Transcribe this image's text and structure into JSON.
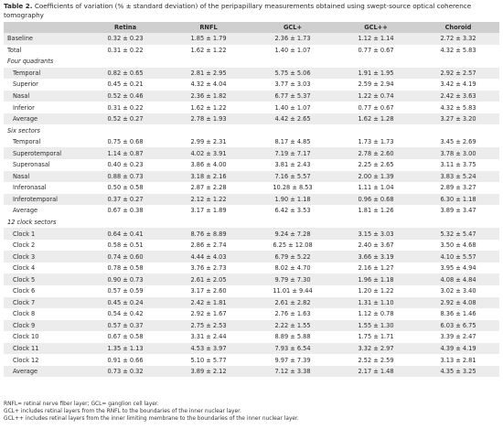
{
  "caption": {
    "label": "Table 2.",
    "text": "Coefficients of variation (% ± standard deviation) of the peripapillary measurements obtained using swept-source optical coherence tomography"
  },
  "columns": [
    "",
    "Retina",
    "RNFL",
    "GCL+",
    "GCL++",
    "Choroid"
  ],
  "rows": [
    {
      "type": "data",
      "shade": true,
      "indent": false,
      "cells": [
        "Baseline",
        "0.32 ± 0.23",
        "1.85 ± 1.79",
        "2.36 ± 1.73",
        "1.12 ± 1.14",
        "2.72 ± 3.32"
      ]
    },
    {
      "type": "data",
      "shade": false,
      "indent": false,
      "cells": [
        "Total",
        "0.31 ± 0.22",
        "1.62 ± 1.22",
        "1.40 ± 1.07",
        "0.77 ± 0.67",
        "4.32 ± 5.83"
      ]
    },
    {
      "type": "section",
      "label": "Four quadrants"
    },
    {
      "type": "data",
      "shade": true,
      "indent": true,
      "cells": [
        "Temporal",
        "0.82 ± 0.65",
        "2.81 ± 2.95",
        "5.75 ± 5.06",
        "1.91 ± 1.95",
        "2.92 ± 2.57"
      ]
    },
    {
      "type": "data",
      "shade": false,
      "indent": true,
      "cells": [
        "Superior",
        "0.45 ± 0.21",
        "4.32 ± 4.04",
        "3.77 ± 3.03",
        "2.59 ± 2.94",
        "3.42 ± 4.19"
      ]
    },
    {
      "type": "data",
      "shade": true,
      "indent": true,
      "cells": [
        "Nasal",
        "0.52 ± 0.46",
        "2.36 ± 1.82",
        "6.77 ± 5.37",
        "1.22 ± 0.74",
        "2.42 ± 3.63"
      ]
    },
    {
      "type": "data",
      "shade": false,
      "indent": true,
      "cells": [
        "Inferior",
        "0.31 ± 0.22",
        "1.62 ± 1.22",
        "1.40 ± 1.07",
        "0.77 ± 0.67",
        "4.32 ± 5.83"
      ]
    },
    {
      "type": "data",
      "shade": true,
      "indent": true,
      "cells": [
        "Average",
        "0.52 ± 0.27",
        "2.78 ± 1.93",
        "4.42 ± 2.65",
        "1.62 ± 1.28",
        "3.27 ± 3.20"
      ]
    },
    {
      "type": "section",
      "label": "Six sectors"
    },
    {
      "type": "data",
      "shade": false,
      "indent": true,
      "cells": [
        "Temporal",
        "0.75 ± 0.68",
        "2.99 ± 2.31",
        "8.17 ± 4.85",
        "1.73 ± 1.73",
        "3.45 ± 2.69"
      ]
    },
    {
      "type": "data",
      "shade": true,
      "indent": true,
      "cells": [
        "Superotemporal",
        "1.14 ± 0.87",
        "4.02 ± 3.91",
        "7.19 ± 7.17",
        "2.78 ± 2.60",
        "3.78 ± 3.00"
      ]
    },
    {
      "type": "data",
      "shade": false,
      "indent": true,
      "cells": [
        "Superonasal",
        "0.40 ± 0.23",
        "3.86 ± 4.00",
        "3.81 ± 2.43",
        "2.25 ± 2.65",
        "3.11 ± 3.75"
      ]
    },
    {
      "type": "data",
      "shade": true,
      "indent": true,
      "cells": [
        "Nasal",
        "0.88 ± 0.73",
        "3.18 ± 2.16",
        "7.16 ± 5.57",
        "2.00 ± 1.39",
        "3.83 ± 5.24"
      ]
    },
    {
      "type": "data",
      "shade": false,
      "indent": true,
      "cells": [
        "Inferonasal",
        "0.50 ± 0.58",
        "2.87 ± 2.28",
        "10.28 ± 8.53",
        "1.11 ± 1.04",
        "2.89 ± 3.27"
      ]
    },
    {
      "type": "data",
      "shade": true,
      "indent": true,
      "cells": [
        "Inferotemporal",
        "0.37 ± 0.27",
        "2.12 ± 1.22",
        "1.90 ± 1.18",
        "0.96 ± 0.68",
        "6.30 ± 1.18"
      ]
    },
    {
      "type": "data",
      "shade": false,
      "indent": true,
      "cells": [
        "Average",
        "0.67 ± 0.38",
        "3.17 ± 1.89",
        "6.42 ± 3.53",
        "1.81 ± 1.26",
        "3.89 ± 3.47"
      ]
    },
    {
      "type": "section",
      "label": "12 clock sectors"
    },
    {
      "type": "data",
      "shade": true,
      "indent": true,
      "cells": [
        "Clock 1",
        "0.64 ± 0.41",
        "8.76 ± 8.89",
        "9.24 ± 7.28",
        "3.15 ± 3.03",
        "5.32 ± 5.47"
      ]
    },
    {
      "type": "data",
      "shade": false,
      "indent": true,
      "cells": [
        "Clock 2",
        "0.58 ± 0.51",
        "2.86 ± 2.74",
        "6.25 ± 12.08",
        "2.40 ± 3.67",
        "3.50 ± 4.68"
      ]
    },
    {
      "type": "data",
      "shade": true,
      "indent": true,
      "cells": [
        "Clock 3",
        "0.74 ± 0.60",
        "4.44 ± 4.03",
        "6.79 ± 5.22",
        "3.66 ± 3.19",
        "4.10 ± 5.57"
      ]
    },
    {
      "type": "data",
      "shade": false,
      "indent": true,
      "cells": [
        "Clock 4",
        "0.78 ± 0.58",
        "3.76 ± 2.73",
        "8.02 ± 4.70",
        "2.16 ± 1.27",
        "3.95 ± 4.94"
      ]
    },
    {
      "type": "data",
      "shade": true,
      "indent": true,
      "cells": [
        "Clock 5",
        "0.90 ± 0.73",
        "2.61 ± 2.05",
        "9.79 ± 7.30",
        "1.96 ± 1.18",
        "4.08 ± 4.84"
      ]
    },
    {
      "type": "data",
      "shade": false,
      "indent": true,
      "cells": [
        "Clock 6",
        "0.57 ± 0.59",
        "3.17 ± 2.60",
        "11.01 ± 9.44",
        "1.20 ± 1.22",
        "3.02 ± 3.40"
      ]
    },
    {
      "type": "data",
      "shade": true,
      "indent": true,
      "cells": [
        "Clock 7",
        "0.45 ± 0.24",
        "2.42 ± 1.81",
        "2.61 ± 2.82",
        "1.31 ± 1.10",
        "2.92 ± 4.08"
      ]
    },
    {
      "type": "data",
      "shade": false,
      "indent": true,
      "cells": [
        "Clock 8",
        "0.54 ± 0.42",
        "2.92 ± 1.67",
        "2.76 ± 1.63",
        "1.12 ± 0.78",
        "8.36 ± 1.46"
      ]
    },
    {
      "type": "data",
      "shade": true,
      "indent": true,
      "cells": [
        "Clock 9",
        "0.57 ± 0.37",
        "2.75 ± 2.53",
        "2.22 ± 1.55",
        "1.55 ± 1.30",
        "6.03 ± 6.75"
      ]
    },
    {
      "type": "data",
      "shade": false,
      "indent": true,
      "cells": [
        "Clock 10",
        "0.67 ± 0.58",
        "3.31 ± 2.44",
        "8.89 ± 5.88",
        "1.75 ± 1.71",
        "3.39 ± 2.47"
      ]
    },
    {
      "type": "data",
      "shade": true,
      "indent": true,
      "cells": [
        "Clock 11",
        "1.35 ± 1.13",
        "4.53 ± 3.97",
        "7.93 ± 6.54",
        "3.32 ± 2.97",
        "4.39 ± 4.19"
      ]
    },
    {
      "type": "data",
      "shade": false,
      "indent": true,
      "cells": [
        "Clock 12",
        "0.91 ± 0.66",
        "5.10 ± 5.77",
        "9.97 ± 7.39",
        "2.52 ± 2.59",
        "3.13 ± 2.81"
      ]
    },
    {
      "type": "data",
      "shade": true,
      "indent": true,
      "cells": [
        "Average",
        "0.73 ± 0.32",
        "3.89 ± 2.12",
        "7.12 ± 3.38",
        "2.17 ± 1.48",
        "4.35 ± 3.25"
      ]
    }
  ],
  "footnotes": [
    "RNFL= retinal nerve fiber layer; GCL= ganglion cell layer.",
    "GCL+ includes retinal layers from the RNFL to the boundaries of the inner nuclear layer.",
    "GCL++ includes retinal layers from the inner limiting membrane to the boundaries of the inner nuclear layer."
  ]
}
